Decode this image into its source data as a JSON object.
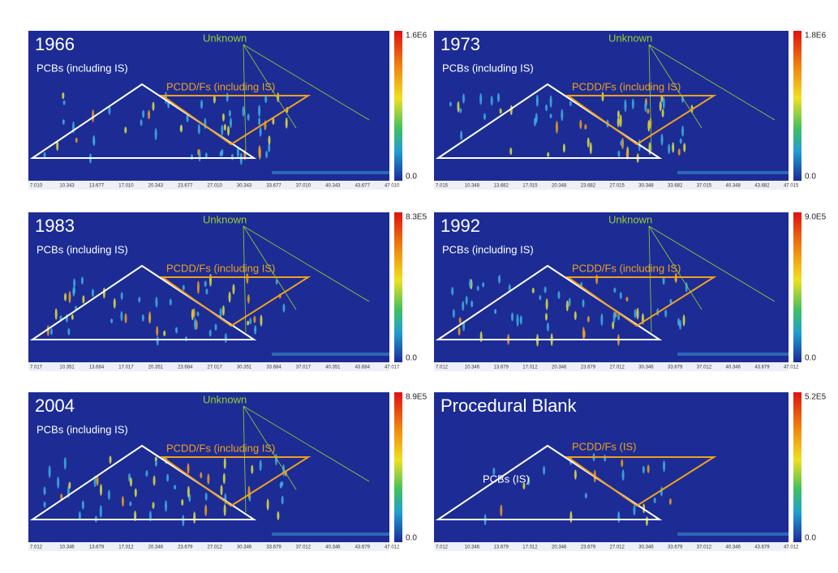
{
  "panels": [
    {
      "title": "1966",
      "pcbs": "PCBs (including IS)",
      "pcdd": "PCDD/Fs (including IS)",
      "unknown": "Unknown",
      "cmax": "1.6E6",
      "cmin": "0.0",
      "xticks": [
        "7.010",
        "10.343",
        "13.677",
        "17.010",
        "20.343",
        "23.677",
        "27.010",
        "30.343",
        "33.677",
        "37.010",
        "40.343",
        "43.677",
        "47.010"
      ]
    },
    {
      "title": "1973",
      "pcbs": "PCBs (including IS)",
      "pcdd": "PCDD/Fs (including IS)",
      "unknown": "Unknown",
      "cmax": "1.8E6",
      "cmin": "0.0",
      "xticks": [
        "7.015",
        "10.348",
        "13.682",
        "17.015",
        "20.348",
        "23.682",
        "27.015",
        "30.348",
        "33.682",
        "37.015",
        "40.348",
        "43.682",
        "47.015"
      ]
    },
    {
      "title": "1983",
      "pcbs": "PCBs (including IS)",
      "pcdd": "PCDD/Fs (including IS)",
      "unknown": "Unknown",
      "cmax": "8.3E5",
      "cmin": "0.0",
      "xticks": [
        "7.017",
        "10.351",
        "13.684",
        "17.017",
        "20.351",
        "23.684",
        "27.017",
        "30.351",
        "33.684",
        "37.017",
        "40.351",
        "43.684",
        "47.017"
      ]
    },
    {
      "title": "1992",
      "pcbs": "PCBs (including IS)",
      "pcdd": "PCDD/Fs (including IS)",
      "unknown": "Unknown",
      "cmax": "9.0E5",
      "cmin": "0.0",
      "xticks": [
        "7.012",
        "10.346",
        "13.679",
        "17.012",
        "20.346",
        "23.679",
        "27.012",
        "30.346",
        "33.679",
        "37.012",
        "40.346",
        "43.679",
        "47.012"
      ]
    },
    {
      "title": "2004",
      "pcbs": "PCBs (including IS)",
      "pcdd": "PCDD/Fs (including IS)",
      "unknown": "Unknown",
      "cmax": "8.9E5",
      "cmin": "0.0",
      "xticks": [
        "7.012",
        "10.346",
        "13.679",
        "17.012",
        "20.346",
        "23.679",
        "27.012",
        "30.346",
        "33.679",
        "37.012",
        "40.346",
        "43.679",
        "47.012"
      ]
    },
    {
      "title": "Procedural Blank",
      "pcbs": "PCBs (IS)",
      "pcdd": "PCDD/Fs (IS)",
      "cmax": "5.2E5",
      "cmin": "0.0",
      "xticks": [
        "7.012",
        "10.346",
        "13.679",
        "17.012",
        "20.346",
        "23.679",
        "27.012",
        "30.346",
        "33.679",
        "37.012",
        "40.346",
        "43.679",
        "47.012"
      ]
    }
  ]
}
